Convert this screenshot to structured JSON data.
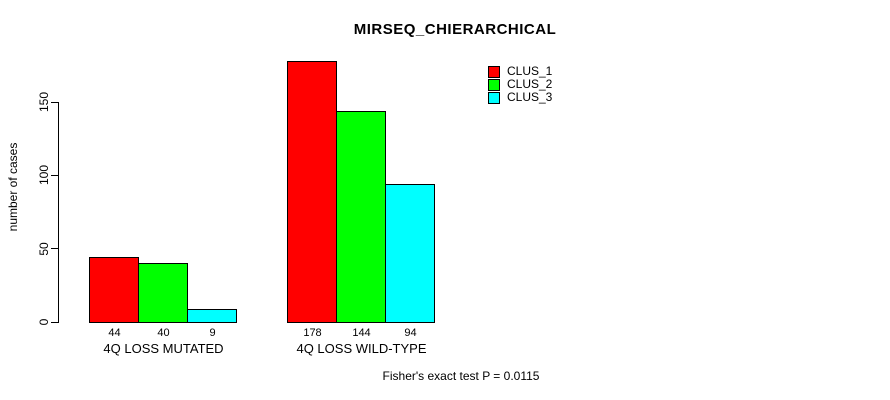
{
  "chart_data": {
    "type": "bar",
    "title": "MIRSEQ_CHIERARCHICAL",
    "ylabel": "number of cases",
    "xlabel": "",
    "categories": [
      "4Q LOSS MUTATED",
      "4Q LOSS WILD-TYPE"
    ],
    "series": [
      {
        "name": "CLUS_1",
        "color": "#FF0000",
        "values": [
          44,
          178
        ]
      },
      {
        "name": "CLUS_2",
        "color": "#00FF00",
        "values": [
          40,
          144
        ]
      },
      {
        "name": "CLUS_3",
        "color": "#00FFFF",
        "values": [
          9,
          94
        ]
      }
    ],
    "yticks": [
      0,
      50,
      100,
      150
    ],
    "ylim": [
      0,
      183
    ],
    "grid": false,
    "legend_position": "top-right",
    "bar_labels_shown": true,
    "footnote": "Fisher's exact test P = 0.0115"
  }
}
